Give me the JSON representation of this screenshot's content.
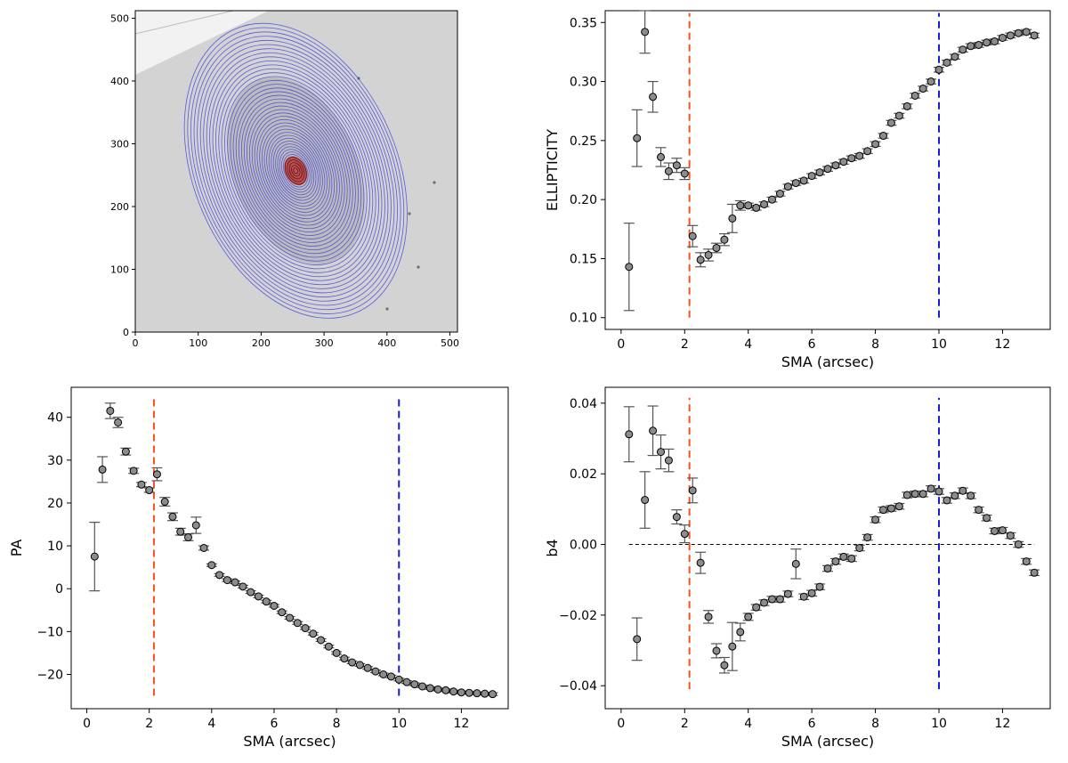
{
  "chart_data": [
    {
      "type": "image",
      "panel": "image-panel",
      "description_kind": "galaxy image with fitted isophote ellipses",
      "xlim": [
        0,
        512
      ],
      "ylim": [
        0,
        512
      ],
      "xticks": [
        0,
        100,
        200,
        300,
        400,
        500
      ],
      "yticks": [
        0,
        100,
        200,
        300,
        400,
        500
      ],
      "center": [
        255,
        257
      ],
      "ellipse_color": "#4444dd",
      "core_color": "#c0392b",
      "ellipses_outer": {
        "sma_max_px": 245,
        "ellipticity": 0.34,
        "pa_deg": -23
      }
    },
    {
      "type": "scatter",
      "panel": "ellipticity-panel",
      "xlabel": "SMA (arcsec)",
      "ylabel": "ELLIPTICITY",
      "xlim": [
        -0.5,
        13.5
      ],
      "ylim": [
        0.09,
        0.36
      ],
      "xticks": [
        0,
        2,
        4,
        6,
        8,
        10,
        12
      ],
      "yticks": [
        0.1,
        0.15,
        0.2,
        0.25,
        0.3,
        0.35
      ],
      "ytick_format": 2,
      "vlines": [
        {
          "x": 2.15,
          "y_from": 0.1,
          "y_to": 0.358,
          "color": "#f4511e"
        },
        {
          "x": 10.0,
          "y_from": 0.1,
          "y_to": 0.358,
          "color": "#1a1adb"
        }
      ],
      "x": [
        0.25,
        0.5,
        0.75,
        1.0,
        1.25,
        1.5,
        1.75,
        2.0,
        2.25,
        2.5,
        2.75,
        3.0,
        3.25,
        3.5,
        3.75,
        4.0,
        4.25,
        4.5,
        4.75,
        5.0,
        5.25,
        5.5,
        5.75,
        6.0,
        6.25,
        6.5,
        6.75,
        7.0,
        7.25,
        7.5,
        7.75,
        8.0,
        8.25,
        8.5,
        8.75,
        9.0,
        9.25,
        9.5,
        9.75,
        10.0,
        10.25,
        10.5,
        10.75,
        11.0,
        11.25,
        11.5,
        11.75,
        12.0,
        12.25,
        12.5,
        12.75,
        13.0
      ],
      "y": [
        0.143,
        0.252,
        0.342,
        0.287,
        0.236,
        0.224,
        0.229,
        0.222,
        0.169,
        0.149,
        0.153,
        0.159,
        0.166,
        0.184,
        0.195,
        0.195,
        0.193,
        0.196,
        0.2,
        0.205,
        0.211,
        0.214,
        0.216,
        0.22,
        0.223,
        0.226,
        0.229,
        0.232,
        0.235,
        0.237,
        0.241,
        0.247,
        0.254,
        0.265,
        0.271,
        0.279,
        0.288,
        0.294,
        0.3,
        0.31,
        0.316,
        0.321,
        0.327,
        0.33,
        0.331,
        0.333,
        0.334,
        0.337,
        0.339,
        0.341,
        0.342,
        0.339
      ],
      "err": [
        0.037,
        0.024,
        0.018,
        0.013,
        0.008,
        0.007,
        0.006,
        0.005,
        0.009,
        0.006,
        0.005,
        0.004,
        0.005,
        0.012,
        0.004,
        0.002,
        0.002,
        0.002,
        0.002,
        0.002,
        0.002,
        0.002,
        0.002,
        0.002,
        0.002,
        0.002,
        0.002,
        0.002,
        0.002,
        0.002,
        0.002,
        0.002,
        0.002,
        0.002,
        0.002,
        0.002,
        0.002,
        0.002,
        0.002,
        0.002,
        0.002,
        0.002,
        0.002,
        0.002,
        0.002,
        0.002,
        0.002,
        0.002,
        0.002,
        0.002,
        0.002,
        0.002
      ]
    },
    {
      "type": "scatter",
      "panel": "pa-panel",
      "xlabel": "SMA (arcsec)",
      "ylabel": "PA",
      "xlim": [
        -0.5,
        13.5
      ],
      "ylim": [
        -28,
        47
      ],
      "xticks": [
        0,
        2,
        4,
        6,
        8,
        10,
        12
      ],
      "yticks": [
        -20,
        -10,
        0,
        10,
        20,
        30,
        40
      ],
      "ytick_format": 0,
      "vlines": [
        {
          "x": 2.15,
          "y_from": -25,
          "y_to": 44.5,
          "color": "#f4511e"
        },
        {
          "x": 10.0,
          "y_from": -25,
          "y_to": 44.5,
          "color": "#1a1adb"
        }
      ],
      "x": [
        0.25,
        0.5,
        0.75,
        1.0,
        1.25,
        1.5,
        1.75,
        2.0,
        2.25,
        2.5,
        2.75,
        3.0,
        3.25,
        3.5,
        3.75,
        4.0,
        4.25,
        4.5,
        4.75,
        5.0,
        5.25,
        5.5,
        5.75,
        6.0,
        6.25,
        6.5,
        6.75,
        7.0,
        7.25,
        7.5,
        7.75,
        8.0,
        8.25,
        8.5,
        8.75,
        9.0,
        9.25,
        9.5,
        9.75,
        10.0,
        10.25,
        10.5,
        10.75,
        11.0,
        11.25,
        11.5,
        11.75,
        12.0,
        12.25,
        12.5,
        12.75,
        13.0
      ],
      "y": [
        7.5,
        27.8,
        41.5,
        38.8,
        32.0,
        27.5,
        24.3,
        23.0,
        26.7,
        20.3,
        16.8,
        13.3,
        12.0,
        14.8,
        9.5,
        5.5,
        3.2,
        2.0,
        1.5,
        0.5,
        -0.8,
        -1.8,
        -3.0,
        -4.0,
        -5.5,
        -6.8,
        -8.0,
        -9.2,
        -10.5,
        -12.0,
        -13.5,
        -15.0,
        -16.3,
        -17.2,
        -17.8,
        -18.5,
        -19.3,
        -20.0,
        -20.5,
        -21.2,
        -21.8,
        -22.3,
        -22.8,
        -23.2,
        -23.5,
        -23.7,
        -24.0,
        -24.2,
        -24.3,
        -24.4,
        -24.5,
        -24.6
      ],
      "err": [
        8.0,
        3.0,
        1.8,
        1.2,
        0.8,
        0.6,
        0.5,
        0.5,
        1.5,
        1.0,
        0.9,
        0.8,
        0.8,
        1.9,
        0.5,
        0.3,
        0.3,
        0.3,
        0.3,
        0.3,
        0.3,
        0.3,
        0.3,
        0.3,
        0.3,
        0.3,
        0.3,
        0.3,
        0.3,
        0.3,
        0.3,
        0.3,
        0.3,
        0.3,
        0.3,
        0.3,
        0.3,
        0.3,
        0.3,
        0.3,
        0.3,
        0.3,
        0.3,
        0.3,
        0.3,
        0.3,
        0.3,
        0.3,
        0.3,
        0.3,
        0.3,
        0.3
      ]
    },
    {
      "type": "scatter",
      "panel": "b4-panel",
      "xlabel": "SMA (arcsec)",
      "ylabel": "b4",
      "xlim": [
        -0.5,
        13.5
      ],
      "ylim": [
        -0.0465,
        0.0445
      ],
      "xticks": [
        0,
        2,
        4,
        6,
        8,
        10,
        12
      ],
      "yticks": [
        -0.04,
        -0.02,
        0.0,
        0.02,
        0.04
      ],
      "ytick_format": 2,
      "hline": {
        "y": 0.0,
        "x_from": 0.25,
        "x_to": 13.0
      },
      "vlines": [
        {
          "x": 2.15,
          "y_from": -0.041,
          "y_to": 0.0415,
          "color": "#f4511e"
        },
        {
          "x": 10.0,
          "y_from": -0.041,
          "y_to": 0.0415,
          "color": "#1a1adb"
        }
      ],
      "x": [
        0.25,
        0.5,
        0.75,
        1.0,
        1.25,
        1.5,
        1.75,
        2.0,
        2.25,
        2.5,
        2.75,
        3.0,
        3.25,
        3.5,
        3.75,
        4.0,
        4.25,
        4.5,
        4.75,
        5.0,
        5.25,
        5.5,
        5.75,
        6.0,
        6.25,
        6.5,
        6.75,
        7.0,
        7.25,
        7.5,
        7.75,
        8.0,
        8.25,
        8.5,
        8.75,
        9.0,
        9.25,
        9.5,
        9.75,
        10.0,
        10.25,
        10.5,
        10.75,
        11.0,
        11.25,
        11.5,
        11.75,
        12.0,
        12.25,
        12.5,
        12.75,
        13.0
      ],
      "y": [
        0.0312,
        -0.0268,
        0.0126,
        0.0322,
        0.0262,
        0.0238,
        0.0078,
        0.003,
        0.0153,
        -0.0052,
        -0.0205,
        -0.0301,
        -0.0342,
        -0.0289,
        -0.0248,
        -0.0205,
        -0.0178,
        -0.0165,
        -0.0155,
        -0.0155,
        -0.014,
        -0.0055,
        -0.0148,
        -0.0138,
        -0.012,
        -0.0068,
        -0.0048,
        -0.0035,
        -0.004,
        -0.001,
        0.002,
        0.007,
        0.0098,
        0.0102,
        0.0108,
        0.014,
        0.0143,
        0.0143,
        0.0158,
        0.015,
        0.0125,
        0.0138,
        0.0152,
        0.0138,
        0.0098,
        0.0075,
        0.0038,
        0.004,
        0.0025,
        0.0,
        -0.0048,
        -0.008
      ],
      "err": [
        0.0078,
        0.006,
        0.008,
        0.007,
        0.0048,
        0.0032,
        0.002,
        0.0025,
        0.0035,
        0.003,
        0.0018,
        0.002,
        0.0022,
        0.0068,
        0.0025,
        0.001,
        0.0008,
        0.0008,
        0.0008,
        0.0008,
        0.0008,
        0.0042,
        0.0008,
        0.0008,
        0.0008,
        0.0008,
        0.0008,
        0.0008,
        0.0008,
        0.0008,
        0.0008,
        0.0008,
        0.0008,
        0.0008,
        0.0008,
        0.0008,
        0.0008,
        0.0008,
        0.0008,
        0.0008,
        0.0008,
        0.0008,
        0.0008,
        0.0008,
        0.0008,
        0.0008,
        0.0008,
        0.0008,
        0.0008,
        0.0008,
        0.0008,
        0.0008
      ]
    }
  ]
}
